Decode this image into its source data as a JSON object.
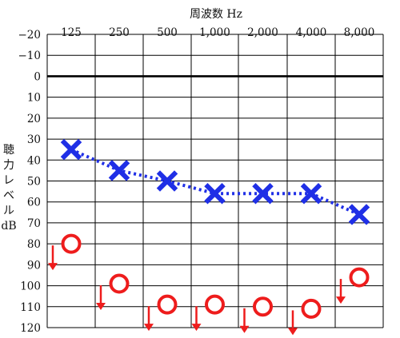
{
  "chart_data": {
    "type": "line",
    "title": "周波数 Hz",
    "ylabel": [
      "聴",
      "力",
      "レ",
      "ベ",
      "ル",
      "dB"
    ],
    "categories": [
      "125",
      "250",
      "500",
      "1,000",
      "2,000",
      "4,000",
      "8,000"
    ],
    "ylim": [
      -20,
      120
    ],
    "y_ticks": [
      "−20",
      "−10",
      "0",
      "10",
      "20",
      "30",
      "40",
      "50",
      "60",
      "70",
      "80",
      "90",
      "100",
      "110",
      "120"
    ],
    "y_direction": "downward",
    "reference_line_at": 0,
    "grid": true,
    "series": [
      {
        "marker": "cross",
        "line_style": "dotted",
        "color": "#1f2fe6",
        "values": [
          35,
          45,
          50,
          56,
          56,
          56,
          66
        ]
      },
      {
        "marker": "circle",
        "color": "#ee1c1c",
        "scale_out_arrow": true,
        "values": [
          80,
          99,
          109,
          109,
          110,
          111,
          96
        ]
      }
    ]
  }
}
